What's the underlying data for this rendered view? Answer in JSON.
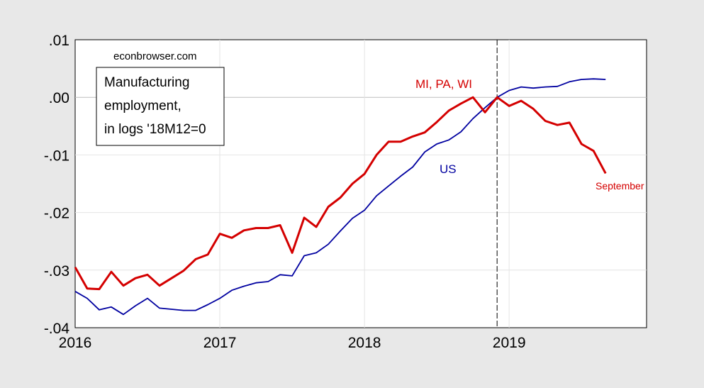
{
  "chart_data": {
    "type": "line",
    "title": "",
    "watermark": "econbrowser.com",
    "legend_box_lines": [
      "Manufacturing",
      "employment,",
      "in logs '18M12=0"
    ],
    "y_tick_labels": [
      ".01",
      ".00",
      "-.01",
      "-.02",
      "-.03",
      "-.04"
    ],
    "y_ticks": [
      0.01,
      0.0,
      -0.01,
      -0.02,
      -0.03,
      -0.04
    ],
    "ylim": [
      -0.04,
      0.01
    ],
    "x_tick_labels": [
      "2016",
      "2017",
      "2018",
      "2019"
    ],
    "x_ticks": [
      2016,
      2017,
      2018,
      2019
    ],
    "xlim": [
      2016,
      2019.95
    ],
    "grid": true,
    "reference_line_x": 2018.9167,
    "series": [
      {
        "name": "MI, PA, WI",
        "color": "#d40000",
        "end_label": "September",
        "x": [
          2016.0,
          2016.0833,
          2016.1667,
          2016.25,
          2016.3333,
          2016.4167,
          2016.5,
          2016.5833,
          2016.6667,
          2016.75,
          2016.8333,
          2016.9167,
          2017.0,
          2017.0833,
          2017.1667,
          2017.25,
          2017.3333,
          2017.4167,
          2017.5,
          2017.5833,
          2017.6667,
          2017.75,
          2017.8333,
          2017.9167,
          2018.0,
          2018.0833,
          2018.1667,
          2018.25,
          2018.3333,
          2018.4167,
          2018.5,
          2018.5833,
          2018.6667,
          2018.75,
          2018.8333,
          2018.9167,
          2019.0,
          2019.0833,
          2019.1667,
          2019.25,
          2019.3333,
          2019.4167,
          2019.5,
          2019.5833,
          2019.6667
        ],
        "values": [
          -0.0295,
          -0.0332,
          -0.0333,
          -0.0303,
          -0.0327,
          -0.0314,
          -0.0308,
          -0.0327,
          -0.0314,
          -0.0301,
          -0.0281,
          -0.0273,
          -0.0237,
          -0.0244,
          -0.0231,
          -0.0227,
          -0.0227,
          -0.0222,
          -0.027,
          -0.0209,
          -0.0225,
          -0.019,
          -0.0174,
          -0.015,
          -0.0133,
          -0.01,
          -0.0077,
          -0.0077,
          -0.0068,
          -0.0061,
          -0.0043,
          -0.0023,
          -0.0011,
          0.0,
          -0.0026,
          0.0,
          -0.0015,
          -0.0006,
          -0.002,
          -0.0041,
          -0.0048,
          -0.0044,
          -0.0081,
          -0.0093,
          -0.0132
        ]
      },
      {
        "name": "US",
        "color": "#0000a0",
        "x": [
          2016.0,
          2016.0833,
          2016.1667,
          2016.25,
          2016.3333,
          2016.4167,
          2016.5,
          2016.5833,
          2016.6667,
          2016.75,
          2016.8333,
          2016.9167,
          2017.0,
          2017.0833,
          2017.1667,
          2017.25,
          2017.3333,
          2017.4167,
          2017.5,
          2017.5833,
          2017.6667,
          2017.75,
          2017.8333,
          2017.9167,
          2018.0,
          2018.0833,
          2018.1667,
          2018.25,
          2018.3333,
          2018.4167,
          2018.5,
          2018.5833,
          2018.6667,
          2018.75,
          2018.8333,
          2018.9167,
          2019.0,
          2019.0833,
          2019.1667,
          2019.25,
          2019.3333,
          2019.4167,
          2019.5,
          2019.5833,
          2019.6667
        ],
        "values": [
          -0.0337,
          -0.0349,
          -0.0369,
          -0.0364,
          -0.0377,
          -0.0362,
          -0.0349,
          -0.0366,
          -0.0368,
          -0.037,
          -0.037,
          -0.036,
          -0.0349,
          -0.0335,
          -0.0328,
          -0.0322,
          -0.032,
          -0.0308,
          -0.031,
          -0.0275,
          -0.027,
          -0.0255,
          -0.0232,
          -0.021,
          -0.0196,
          -0.0171,
          -0.0154,
          -0.0137,
          -0.0121,
          -0.0095,
          -0.0081,
          -0.0074,
          -0.006,
          -0.0037,
          -0.0018,
          0.0,
          0.0012,
          0.0018,
          0.0016,
          0.0018,
          0.0019,
          0.0027,
          0.0031,
          0.0032,
          0.0031
        ]
      }
    ]
  }
}
